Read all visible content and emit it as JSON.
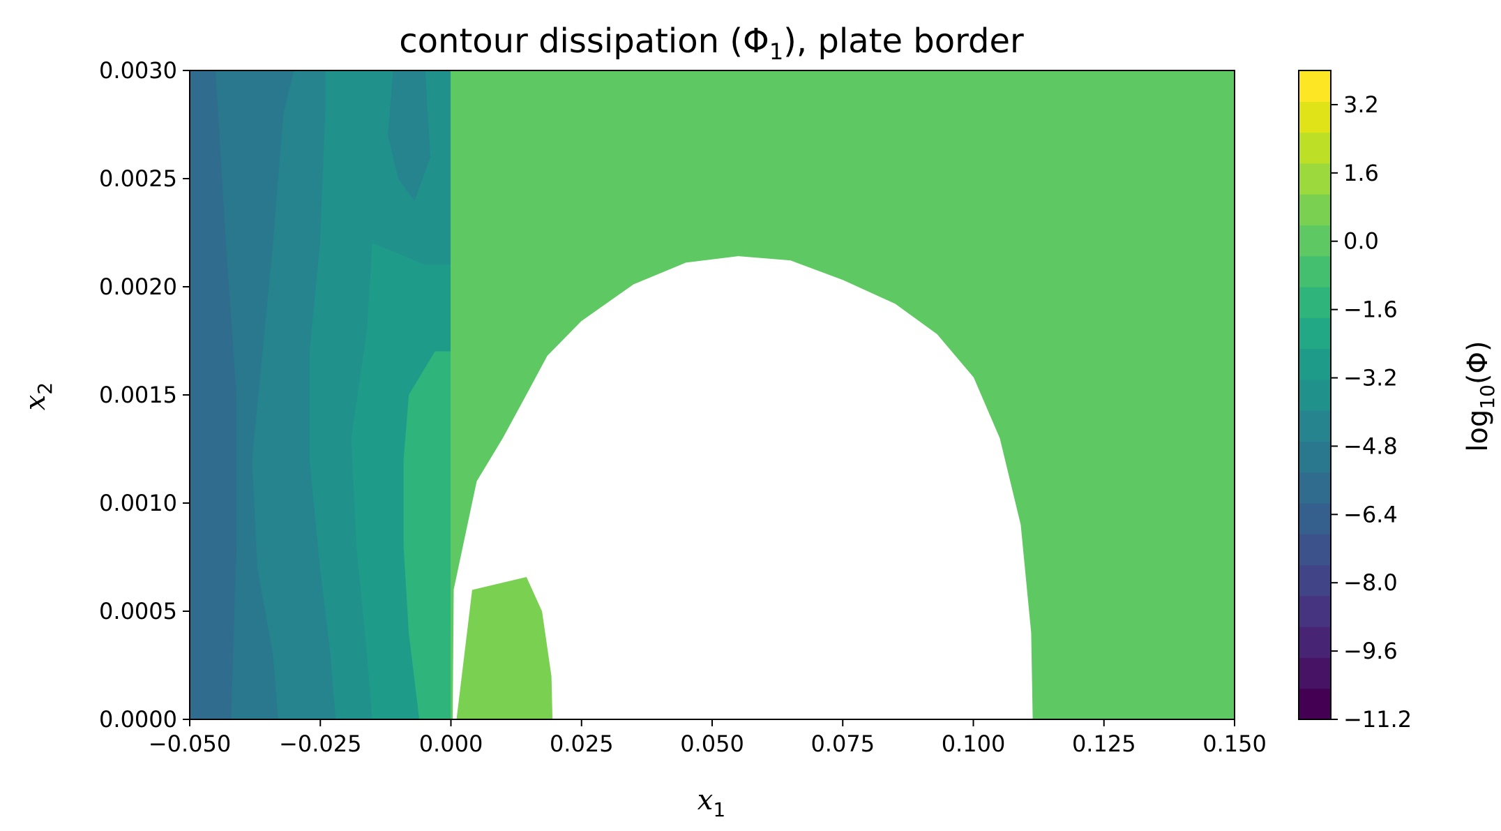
{
  "chart_data": {
    "type": "contourf",
    "title": "contour dissipation (Φ1), plate border",
    "title_parts": {
      "prefix": "contour dissipation (Φ",
      "sub": "1",
      "suffix": "), plate border"
    },
    "xlabel": {
      "var": "x",
      "sub": "1"
    },
    "ylabel": {
      "var": "x",
      "sub": "2"
    },
    "xlim": [
      -0.05,
      0.15
    ],
    "ylim": [
      0.0,
      0.003
    ],
    "xticks": [
      -0.05,
      -0.025,
      0.0,
      0.025,
      0.05,
      0.075,
      0.1,
      0.125,
      0.15
    ],
    "xtick_labels": [
      "−0.050",
      "−0.025",
      "0.000",
      "0.025",
      "0.050",
      "0.075",
      "0.100",
      "0.125",
      "0.150"
    ],
    "yticks": [
      0.0,
      0.0005,
      0.001,
      0.0015,
      0.002,
      0.0025,
      0.003
    ],
    "ytick_labels": [
      "0.0000",
      "0.0005",
      "0.0010",
      "0.0015",
      "0.0020",
      "0.0025",
      "0.0030"
    ],
    "colorbar": {
      "label_prefix": "log",
      "label_sub": "10",
      "label_suffix": "(Φ)",
      "range": [
        -11.2,
        4.0
      ],
      "ticks": [
        -11.2,
        -9.6,
        -8.0,
        -6.4,
        -4.8,
        -3.2,
        -1.6,
        0.0,
        1.6,
        3.2
      ],
      "tick_labels": [
        "−11.2",
        "−9.6",
        "−8.0",
        "−6.4",
        "−4.8",
        "−3.2",
        "−1.6",
        "0.0",
        "1.6",
        "3.2"
      ],
      "levels": 19,
      "colors": [
        "#440154",
        "#471365",
        "#482475",
        "#463480",
        "#414487",
        "#3b528b",
        "#355f8d",
        "#2f6c8e",
        "#2a788e",
        "#25848e",
        "#21918c",
        "#1e9c89",
        "#22a884",
        "#2fb47c",
        "#44bf70",
        "#5ec962",
        "#7ad151",
        "#9bd93c",
        "#bddf26",
        "#dfe318",
        "#fde725"
      ]
    },
    "regions": [
      {
        "name": "left-band-outer",
        "value": -5.6,
        "color": "#2f6c8e",
        "polygon": [
          [
            -0.05,
            0
          ],
          [
            -0.042,
            0
          ],
          [
            -0.041,
            0.0008
          ],
          [
            -0.041,
            0.0015
          ],
          [
            -0.043,
            0.0022
          ],
          [
            -0.045,
            0.003
          ],
          [
            -0.05,
            0.003
          ]
        ]
      },
      {
        "name": "left-band-2",
        "value": -4.0,
        "color": "#2a788e",
        "polygon": [
          [
            -0.042,
            0
          ],
          [
            -0.033,
            0
          ],
          [
            -0.034,
            0.0003
          ],
          [
            -0.037,
            0.0007
          ],
          [
            -0.038,
            0.0012
          ],
          [
            -0.036,
            0.0017
          ],
          [
            -0.034,
            0.0022
          ],
          [
            -0.032,
            0.0028
          ],
          [
            -0.03,
            0.003
          ],
          [
            -0.045,
            0.003
          ],
          [
            -0.043,
            0.0022
          ],
          [
            -0.041,
            0.0015
          ],
          [
            -0.041,
            0.0008
          ]
        ]
      },
      {
        "name": "left-band-3",
        "value": -3.2,
        "color": "#25848e",
        "polygon": [
          [
            -0.033,
            0
          ],
          [
            -0.022,
            0
          ],
          [
            -0.023,
            0.0003
          ],
          [
            -0.025,
            0.0007
          ],
          [
            -0.027,
            0.0012
          ],
          [
            -0.027,
            0.0017
          ],
          [
            -0.025,
            0.0022
          ],
          [
            -0.024,
            0.0028
          ],
          [
            -0.024,
            0.003
          ],
          [
            -0.03,
            0.003
          ],
          [
            -0.032,
            0.0028
          ],
          [
            -0.034,
            0.0022
          ],
          [
            -0.036,
            0.0017
          ],
          [
            -0.038,
            0.0012
          ],
          [
            -0.037,
            0.0007
          ],
          [
            -0.034,
            0.0003
          ]
        ]
      },
      {
        "name": "left-band-4",
        "value": -2.4,
        "color": "#21918c",
        "polygon": [
          [
            -0.022,
            0
          ],
          [
            -0.015,
            0
          ],
          [
            -0.016,
            0.0003
          ],
          [
            -0.018,
            0.0008
          ],
          [
            -0.019,
            0.0013
          ],
          [
            -0.016,
            0.0018
          ],
          [
            -0.015,
            0.0022
          ],
          [
            -0.005,
            0.0021
          ],
          [
            0,
            0.0021
          ],
          [
            0,
            0.003
          ],
          [
            -0.024,
            0.003
          ],
          [
            -0.024,
            0.0028
          ],
          [
            -0.025,
            0.0022
          ],
          [
            -0.027,
            0.0017
          ],
          [
            -0.027,
            0.0012
          ],
          [
            -0.025,
            0.0007
          ],
          [
            -0.023,
            0.0003
          ]
        ]
      },
      {
        "name": "left-band-5",
        "value": -1.6,
        "color": "#1e9c89",
        "polygon": [
          [
            -0.015,
            0
          ],
          [
            -0.006,
            0
          ],
          [
            -0.008,
            0.0004
          ],
          [
            -0.009,
            0.0008
          ],
          [
            -0.009,
            0.0012
          ],
          [
            -0.008,
            0.0015
          ],
          [
            -0.003,
            0.0017
          ],
          [
            0,
            0.0017
          ],
          [
            0,
            0.0021
          ],
          [
            -0.005,
            0.0021
          ],
          [
            -0.015,
            0.0022
          ],
          [
            -0.016,
            0.0018
          ],
          [
            -0.019,
            0.0013
          ],
          [
            -0.018,
            0.0008
          ],
          [
            -0.016,
            0.0003
          ]
        ]
      },
      {
        "name": "left-band-inner",
        "value": -0.8,
        "color": "#2fb47c",
        "polygon": [
          [
            -0.006,
            0
          ],
          [
            0,
            0
          ],
          [
            0,
            0.0017
          ],
          [
            -0.003,
            0.0017
          ],
          [
            -0.008,
            0.0015
          ],
          [
            -0.009,
            0.0012
          ],
          [
            -0.009,
            0.0008
          ],
          [
            -0.008,
            0.0004
          ]
        ]
      },
      {
        "name": "upper-notch",
        "value": -3.2,
        "color": "#25848e",
        "polygon": [
          [
            -0.011,
            0.003
          ],
          [
            -0.012,
            0.0027
          ],
          [
            -0.01,
            0.0025
          ],
          [
            -0.007,
            0.0024
          ],
          [
            -0.004,
            0.0026
          ],
          [
            -0.005,
            0.003
          ]
        ]
      },
      {
        "name": "plate-region",
        "value": 0.4,
        "color": "#5ec962",
        "polygon": [
          [
            0,
            0
          ],
          [
            0,
            0.003
          ],
          [
            0.15,
            0.003
          ],
          [
            0.15,
            0
          ]
        ]
      },
      {
        "name": "plate-hotspot",
        "value": 1.6,
        "color": "#7ad151",
        "polygon": [
          [
            0.001,
            0
          ],
          [
            0.004,
            0.0006
          ],
          [
            0.0145,
            0.00066
          ],
          [
            0.0175,
            0.0005
          ],
          [
            0.0193,
            0.0002
          ],
          [
            0.0195,
            0
          ]
        ]
      }
    ],
    "masked_region": {
      "name": "no-data-hole",
      "polygon": [
        [
          0.0004,
          0
        ],
        [
          0.0006,
          0.0006
        ],
        [
          0.005,
          0.0011
        ],
        [
          0.01,
          0.0013
        ],
        [
          0.0145,
          0.0015
        ],
        [
          0.0185,
          0.00168
        ],
        [
          0.025,
          0.00184
        ],
        [
          0.035,
          0.00201
        ],
        [
          0.045,
          0.00211
        ],
        [
          0.055,
          0.00214
        ],
        [
          0.065,
          0.00212
        ],
        [
          0.075,
          0.00203
        ],
        [
          0.085,
          0.00192
        ],
        [
          0.093,
          0.00178
        ],
        [
          0.1,
          0.00158
        ],
        [
          0.105,
          0.0013
        ],
        [
          0.109,
          0.0009
        ],
        [
          0.111,
          0.0004
        ],
        [
          0.1113,
          0
        ],
        [
          0.0195,
          0
        ],
        [
          0.0193,
          0.0002
        ],
        [
          0.0175,
          0.0005
        ],
        [
          0.0145,
          0.00066
        ],
        [
          0.004,
          0.0006
        ],
        [
          0.001,
          0
        ]
      ]
    }
  }
}
